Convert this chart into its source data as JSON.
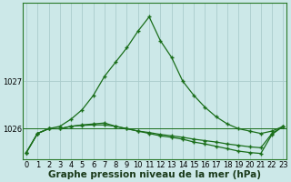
{
  "hours": [
    0,
    1,
    2,
    3,
    4,
    5,
    6,
    7,
    8,
    9,
    10,
    11,
    12,
    13,
    14,
    15,
    16,
    17,
    18,
    19,
    20,
    21,
    22,
    23
  ],
  "line1": [
    1025.5,
    1025.9,
    1026.0,
    1026.05,
    1026.2,
    1026.4,
    1026.7,
    1027.1,
    1027.4,
    1027.7,
    1028.05,
    1028.35,
    1027.85,
    1027.5,
    1027.0,
    1026.7,
    1026.45,
    1026.25,
    1026.1,
    1026.0,
    1025.95,
    1025.9,
    1025.95,
    1026.05
  ],
  "line2": [
    1025.5,
    1025.9,
    1026.0,
    1026.0,
    1026.05,
    1026.08,
    1026.1,
    1026.12,
    1026.05,
    1026.0,
    1025.95,
    1025.92,
    1025.88,
    1025.85,
    1025.82,
    1025.78,
    1025.75,
    1025.72,
    1025.68,
    1025.65,
    1025.62,
    1025.6,
    1025.9,
    1026.05
  ],
  "line3": [
    1025.5,
    1025.9,
    1026.0,
    1026.0,
    1026.05,
    1026.07,
    1026.08,
    1026.08,
    1026.05,
    1026.0,
    1025.95,
    1025.9,
    1025.85,
    1025.82,
    1025.78,
    1025.72,
    1025.68,
    1025.63,
    1025.58,
    1025.53,
    1025.5,
    1025.48,
    1025.88,
    1026.05
  ],
  "hline_y": 1026.0,
  "bg_color": "#cce8e8",
  "grid_color": "#aacccc",
  "line_color": "#1a6e1a",
  "marker": "+",
  "markersize": 3,
  "linewidth": 0.9,
  "ylim": [
    1025.35,
    1028.65
  ],
  "yticks": [
    1026,
    1027
  ],
  "xlim": [
    -0.3,
    23.3
  ],
  "xticks": [
    0,
    1,
    2,
    3,
    4,
    5,
    6,
    7,
    8,
    9,
    10,
    11,
    12,
    13,
    14,
    15,
    16,
    17,
    18,
    19,
    20,
    21,
    22,
    23
  ],
  "xlabel": "Graphe pression niveau de la mer (hPa)",
  "xlabel_fontsize": 7.5,
  "tick_fontsize": 6.0
}
